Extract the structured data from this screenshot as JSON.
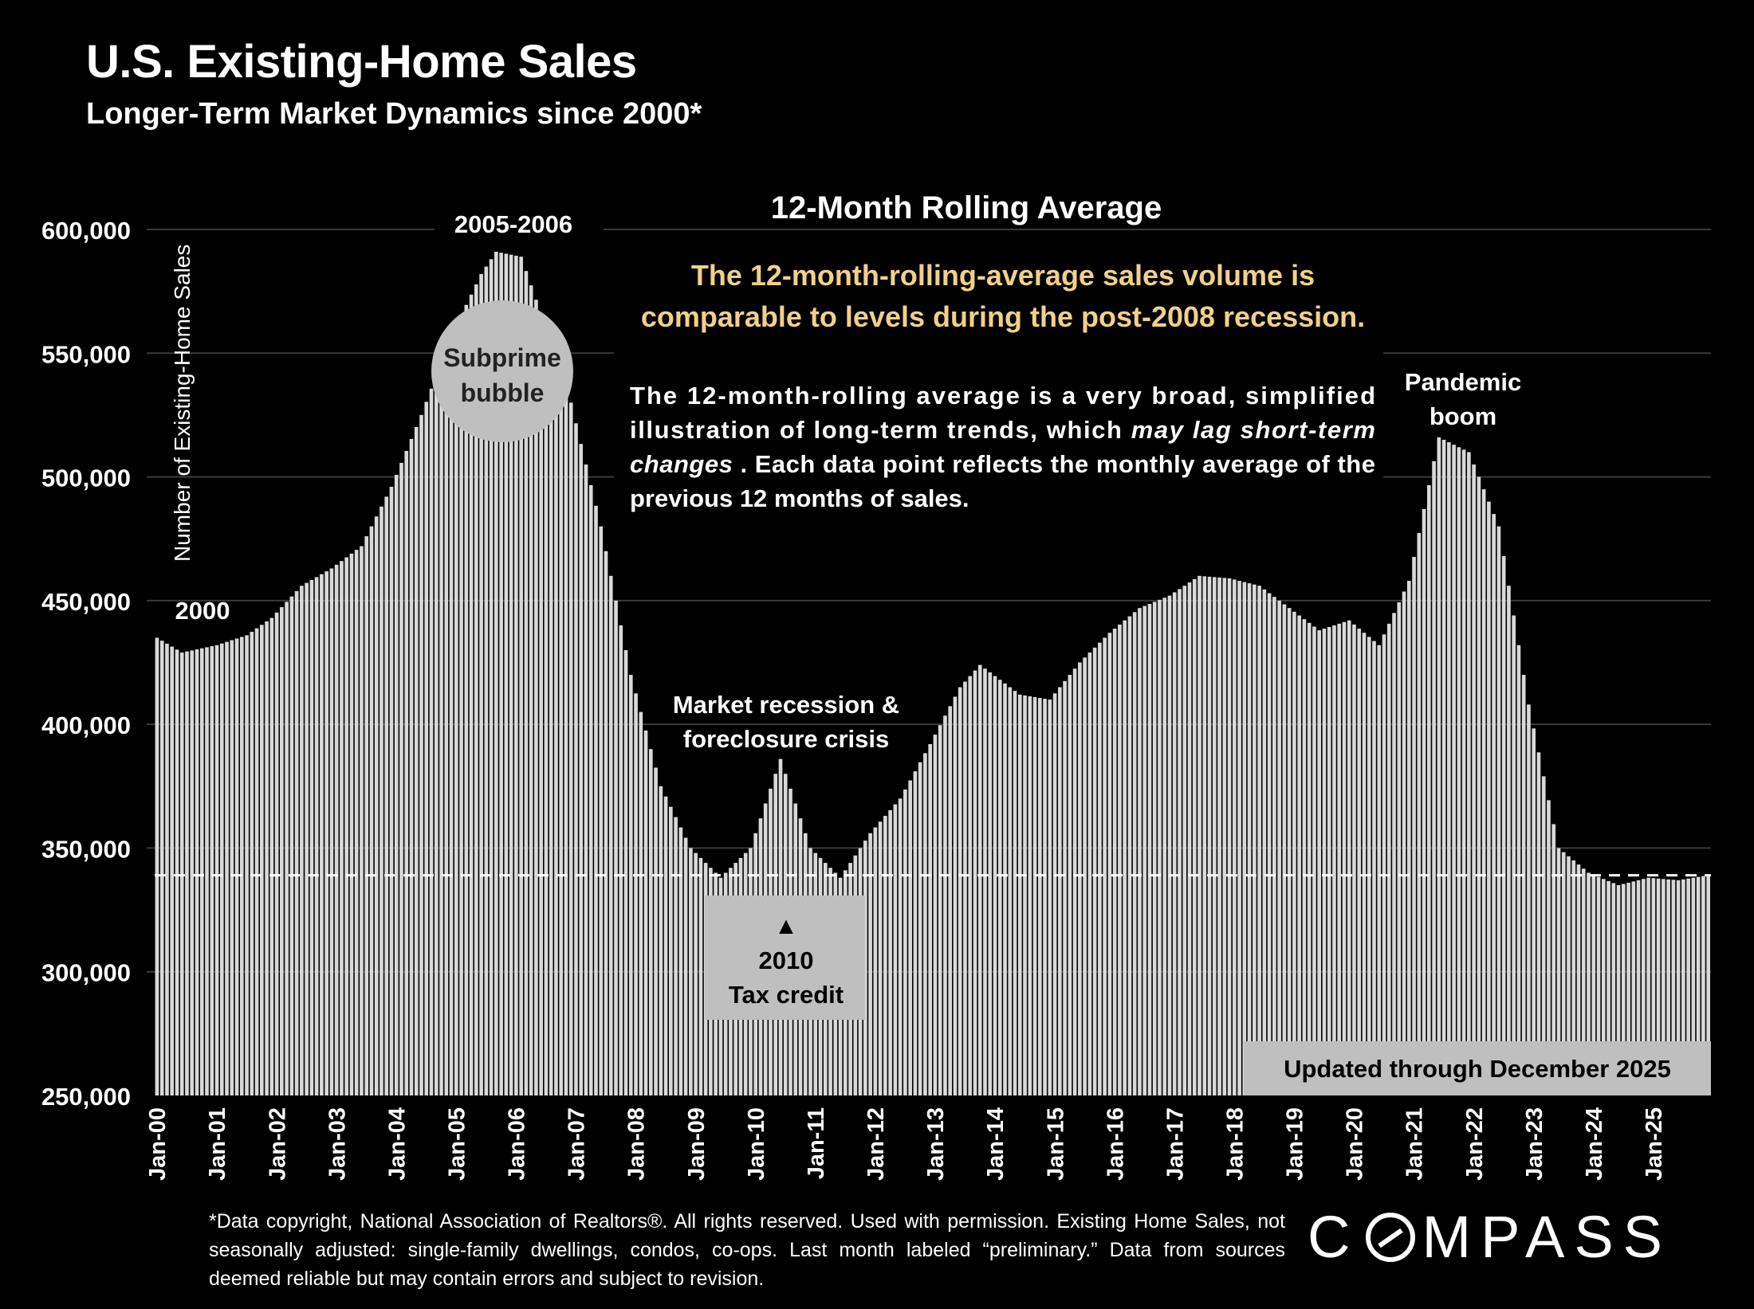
{
  "page": {
    "title": "U.S. Existing-Home Sales",
    "subtitle": "Longer-Term Market Dynamics since 2000*",
    "footnote": "*Data copyright, National Association of Realtors®. All rights reserved. Used with permission. Existing Home Sales, not seasonally adjusted:  single-family dwellings, condos, co-ops. Last month labeled “preliminary.” Data from sources deemed reliable but may contain errors and subject to revision.",
    "logo": {
      "pre": "C",
      "post": "MPASS"
    }
  },
  "chart_data": {
    "type": "bar",
    "title": "12-Month Rolling Average",
    "ylabel": "Number of Existing-Home Sales",
    "xlabel": "",
    "ylim": [
      250000,
      600000
    ],
    "yticks": [
      "600,000",
      "550,000",
      "500,000",
      "450,000",
      "400,000",
      "350,000",
      "300,000",
      "250,000"
    ],
    "ytick_values": [
      600000,
      550000,
      500000,
      450000,
      400000,
      350000,
      300000,
      250000
    ],
    "xtick_labels": [
      "Jan-00",
      "Jan-01",
      "Jan-02",
      "Jan-03",
      "Jan-04",
      "Jan-05",
      "Jan-06",
      "Jan-07",
      "Jan-08",
      "Jan-09",
      "Jan-10",
      "Jan-11",
      "Jan-12",
      "Jan-13",
      "Jan-14",
      "Jan-15",
      "Jan-16",
      "Jan-17",
      "Jan-18",
      "Jan-19",
      "Jan-20",
      "Jan-21",
      "Jan-22",
      "Jan-23",
      "Jan-24",
      "Jan-25"
    ],
    "start_month": "Jan-00",
    "end_month": "Dec-25",
    "monthly_anchors": [
      [
        "Jan-00",
        435000
      ],
      [
        "Jun-00",
        429000
      ],
      [
        "Jan-01",
        432000
      ],
      [
        "Jul-01",
        436000
      ],
      [
        "Dec-01",
        443000
      ],
      [
        "Jun-02",
        456000
      ],
      [
        "Dec-02",
        463000
      ],
      [
        "Jun-03",
        472000
      ],
      [
        "Dec-03",
        496000
      ],
      [
        "Jun-04",
        525000
      ],
      [
        "Dec-04",
        557000
      ],
      [
        "Jun-05",
        582000
      ],
      [
        "Sep-05",
        591000
      ],
      [
        "Feb-06",
        589000
      ],
      [
        "Jul-06",
        560000
      ],
      [
        "Dec-06",
        530000
      ],
      [
        "Jun-07",
        480000
      ],
      [
        "Dec-07",
        420000
      ],
      [
        "Jun-08",
        375000
      ],
      [
        "Dec-08",
        350000
      ],
      [
        "Jun-09",
        338000
      ],
      [
        "Dec-09",
        350000
      ],
      [
        "Jun-10",
        386000
      ],
      [
        "Dec-10",
        350000
      ],
      [
        "Jun-11",
        338000
      ],
      [
        "Dec-11",
        356000
      ],
      [
        "Jun-12",
        370000
      ],
      [
        "Dec-12",
        392000
      ],
      [
        "Jun-13",
        415000
      ],
      [
        "Oct-13",
        424000
      ],
      [
        "Jun-14",
        412000
      ],
      [
        "Dec-14",
        410000
      ],
      [
        "Jun-15",
        425000
      ],
      [
        "Dec-15",
        437000
      ],
      [
        "Jun-16",
        447000
      ],
      [
        "Dec-16",
        452000
      ],
      [
        "Jun-17",
        460000
      ],
      [
        "Dec-17",
        459000
      ],
      [
        "Jun-18",
        456000
      ],
      [
        "Dec-18",
        447000
      ],
      [
        "Jun-19",
        438000
      ],
      [
        "Dec-19",
        442000
      ],
      [
        "Jun-20",
        432000
      ],
      [
        "Dec-20",
        458000
      ],
      [
        "Jun-21",
        516000
      ],
      [
        "Dec-21",
        510000
      ],
      [
        "Jun-22",
        480000
      ],
      [
        "Dec-22",
        408000
      ],
      [
        "Jun-23",
        350000
      ],
      [
        "Dec-23",
        340000
      ],
      [
        "Jun-24",
        335000
      ],
      [
        "Dec-24",
        338000
      ],
      [
        "Jun-25",
        337000
      ],
      [
        "Dec-25",
        339000
      ]
    ],
    "reference_line": {
      "value": 339000,
      "style": "dashed"
    },
    "annotations": {
      "year2000": "2000",
      "peak": "2005-2006",
      "bubble": "Subprime bubble",
      "headline": "The 12-month-rolling-average sales volume is comparable to levels during the post-2008 recession.",
      "body_parts": [
        "The 12-month-rolling average is a very broad, simplified illustration of long-term trends, which ",
        "may lag short-term changes",
        ". Each data point reflects the monthly average of the previous 12 months of sales."
      ],
      "recession": "Market recession & foreclosure crisis",
      "tax_arrow": "▲",
      "tax_credit": "2010 Tax credit",
      "pandemic": "Pandemic boom",
      "updated": "Updated through December 2025"
    },
    "colors": {
      "bar": "#d9d9d9",
      "grid": "#3a3a3a",
      "headline": "#f2d08a",
      "box": "#bfbfbf",
      "bubble": "#bfbfbf",
      "background": "#000000"
    }
  }
}
